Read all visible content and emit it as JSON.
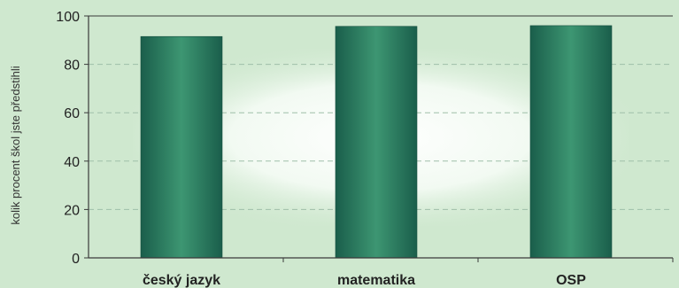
{
  "chart_data": {
    "type": "bar",
    "categories": [
      "český jazyk",
      "matematika",
      "OSP"
    ],
    "values": [
      91.5,
      95.7,
      96.0
    ],
    "title": "",
    "xlabel": "",
    "ylabel": "kolik procent škol jste předstihli",
    "ylim": [
      0,
      100
    ],
    "yticks": [
      "0",
      "20",
      "40",
      "60",
      "80",
      "100"
    ],
    "grid": true,
    "legend": "none"
  },
  "colors": {
    "background": "#cfe8cf",
    "plot_glow": "#ffffff",
    "bar_dark": "#1f6b56",
    "bar_light": "#3c9270",
    "gridline": "#9fbfa9",
    "axis": "#3a3a3a"
  }
}
